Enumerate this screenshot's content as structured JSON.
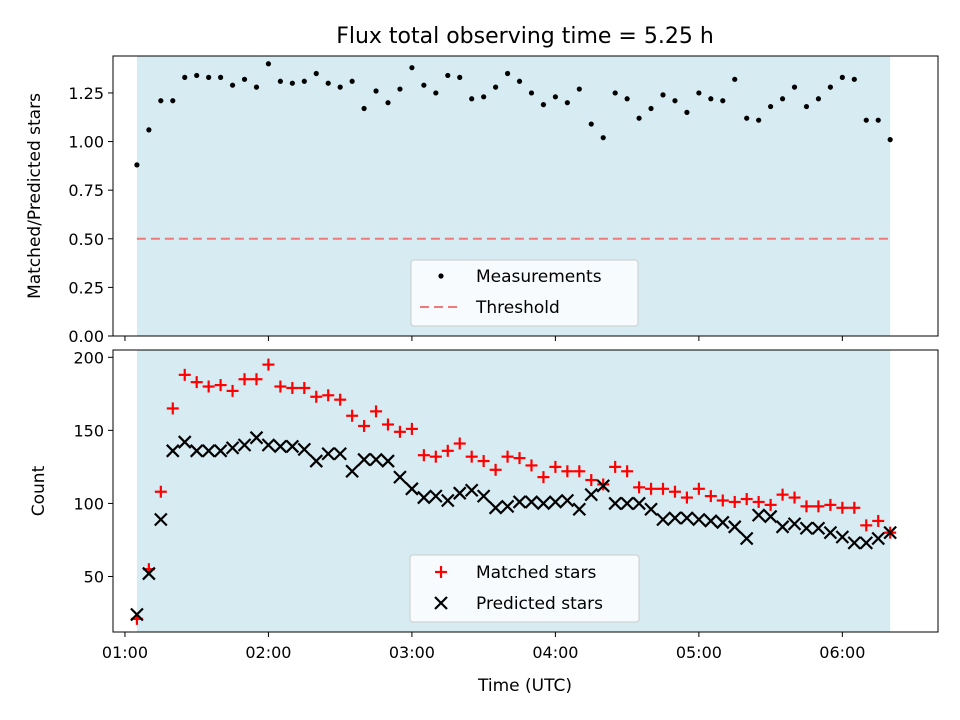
{
  "chart_data": [
    {
      "type": "scatter",
      "title": "Flux total observing time = 5.25 h",
      "xlabel": "",
      "ylabel": "Matched/Predicted stars",
      "xlim": [
        "00:55",
        "06:40"
      ],
      "ylim": [
        0,
        1.44
      ],
      "yticks": [
        0.0,
        0.25,
        0.5,
        0.75,
        1.0,
        1.25
      ],
      "ytick_labels": [
        "0.00",
        "0.25",
        "0.50",
        "0.75",
        "1.00",
        "1.25"
      ],
      "observing_window": [
        "01:05",
        "06:20"
      ],
      "threshold": 0.5,
      "legend_position": "lower center",
      "series": [
        {
          "name": "Measurements",
          "marker": "dot",
          "color": "#000000",
          "x": [
            "01:05",
            "01:10",
            "01:15",
            "01:20",
            "01:25",
            "01:30",
            "01:35",
            "01:40",
            "01:45",
            "01:50",
            "01:55",
            "02:00",
            "02:05",
            "02:10",
            "02:15",
            "02:20",
            "02:25",
            "02:30",
            "02:35",
            "02:40",
            "02:45",
            "02:50",
            "02:55",
            "03:00",
            "03:05",
            "03:10",
            "03:15",
            "03:20",
            "03:25",
            "03:30",
            "03:35",
            "03:40",
            "03:45",
            "03:50",
            "03:55",
            "04:00",
            "04:05",
            "04:10",
            "04:15",
            "04:20",
            "04:25",
            "04:30",
            "04:35",
            "04:40",
            "04:45",
            "04:50",
            "04:55",
            "05:00",
            "05:05",
            "05:10",
            "05:15",
            "05:20",
            "05:25",
            "05:30",
            "05:35",
            "05:40",
            "05:45",
            "05:50",
            "05:55",
            "06:00",
            "06:05",
            "06:10",
            "06:15",
            "06:20"
          ],
          "y": [
            0.88,
            1.06,
            1.21,
            1.21,
            1.33,
            1.34,
            1.33,
            1.33,
            1.29,
            1.32,
            1.28,
            1.4,
            1.31,
            1.3,
            1.31,
            1.35,
            1.3,
            1.28,
            1.31,
            1.17,
            1.26,
            1.2,
            1.27,
            1.38,
            1.29,
            1.25,
            1.34,
            1.33,
            1.22,
            1.23,
            1.28,
            1.35,
            1.31,
            1.25,
            1.19,
            1.23,
            1.2,
            1.27,
            1.09,
            1.02,
            1.25,
            1.22,
            1.12,
            1.17,
            1.24,
            1.21,
            1.15,
            1.25,
            1.22,
            1.21,
            1.32,
            1.12,
            1.11,
            1.18,
            1.22,
            1.28,
            1.18,
            1.22,
            1.28,
            1.33,
            1.32,
            1.11,
            1.11,
            1.01
          ]
        },
        {
          "name": "Threshold",
          "marker": "dashed-line",
          "color": "#f07a7a",
          "x": [
            "01:05",
            "06:20"
          ],
          "y": [
            0.5,
            0.5
          ]
        }
      ]
    },
    {
      "type": "scatter",
      "title": "",
      "xlabel": "Time (UTC)",
      "ylabel": "Count",
      "xlim": [
        "00:55",
        "06:40"
      ],
      "ylim": [
        12,
        205
      ],
      "yticks": [
        50,
        100,
        150,
        200
      ],
      "ytick_labels": [
        "50",
        "100",
        "150",
        "200"
      ],
      "xticks": [
        "01:00",
        "02:00",
        "03:00",
        "04:00",
        "05:00",
        "06:00"
      ],
      "xtick_labels": [
        "01:00",
        "02:00",
        "03:00",
        "04:00",
        "05:00",
        "06:00"
      ],
      "observing_window": [
        "01:05",
        "06:20"
      ],
      "legend_position": "lower center",
      "series": [
        {
          "name": "Matched stars",
          "marker": "plus",
          "color": "#ff0000",
          "x": [
            "01:05",
            "01:10",
            "01:15",
            "01:20",
            "01:25",
            "01:30",
            "01:35",
            "01:40",
            "01:45",
            "01:50",
            "01:55",
            "02:00",
            "02:05",
            "02:10",
            "02:15",
            "02:20",
            "02:25",
            "02:30",
            "02:35",
            "02:40",
            "02:45",
            "02:50",
            "02:55",
            "03:00",
            "03:05",
            "03:10",
            "03:15",
            "03:20",
            "03:25",
            "03:30",
            "03:35",
            "03:40",
            "03:45",
            "03:50",
            "03:55",
            "04:00",
            "04:05",
            "04:10",
            "04:15",
            "04:20",
            "04:25",
            "04:30",
            "04:35",
            "04:40",
            "04:45",
            "04:50",
            "04:55",
            "05:00",
            "05:05",
            "05:10",
            "05:15",
            "05:20",
            "05:25",
            "05:30",
            "05:35",
            "05:40",
            "05:45",
            "05:50",
            "05:55",
            "06:00",
            "06:05",
            "06:10",
            "06:15",
            "06:20"
          ],
          "y": [
            21,
            55,
            108,
            165,
            188,
            183,
            180,
            181,
            177,
            185,
            185,
            195,
            180,
            179,
            179,
            173,
            174,
            171,
            160,
            153,
            163,
            154,
            149,
            151,
            133,
            132,
            136,
            141,
            132,
            129,
            123,
            132,
            131,
            126,
            118,
            125,
            122,
            122,
            116,
            113,
            125,
            122,
            111,
            110,
            110,
            108,
            104,
            110,
            105,
            102,
            101,
            103,
            101,
            99,
            106,
            104,
            98,
            98,
            99,
            97,
            97,
            85,
            88,
            80
          ]
        },
        {
          "name": "Predicted stars",
          "marker": "x",
          "color": "#000000",
          "x": [
            "01:05",
            "01:10",
            "01:15",
            "01:20",
            "01:25",
            "01:30",
            "01:35",
            "01:40",
            "01:45",
            "01:50",
            "01:55",
            "02:00",
            "02:05",
            "02:10",
            "02:15",
            "02:20",
            "02:25",
            "02:30",
            "02:35",
            "02:40",
            "02:45",
            "02:50",
            "02:55",
            "03:00",
            "03:05",
            "03:10",
            "03:15",
            "03:20",
            "03:25",
            "03:30",
            "03:35",
            "03:40",
            "03:45",
            "03:50",
            "03:55",
            "04:00",
            "04:05",
            "04:10",
            "04:15",
            "04:20",
            "04:25",
            "04:30",
            "04:35",
            "04:40",
            "04:45",
            "04:50",
            "04:55",
            "05:00",
            "05:05",
            "05:10",
            "05:15",
            "05:20",
            "05:25",
            "05:30",
            "05:35",
            "05:40",
            "05:45",
            "05:50",
            "05:55",
            "06:00",
            "06:05",
            "06:10",
            "06:15",
            "06:20"
          ],
          "y": [
            24,
            52,
            89,
            136,
            142,
            136,
            136,
            136,
            138,
            140,
            145,
            140,
            139,
            139,
            137,
            129,
            134,
            134,
            122,
            130,
            130,
            129,
            118,
            110,
            104,
            105,
            102,
            107,
            109,
            105,
            97,
            98,
            101,
            101,
            100,
            101,
            102,
            96,
            106,
            112,
            100,
            100,
            100,
            96,
            89,
            90,
            90,
            89,
            88,
            87,
            84,
            76,
            92,
            91,
            84,
            86,
            83,
            83,
            80,
            77,
            73,
            73,
            76,
            80
          ]
        }
      ]
    }
  ]
}
